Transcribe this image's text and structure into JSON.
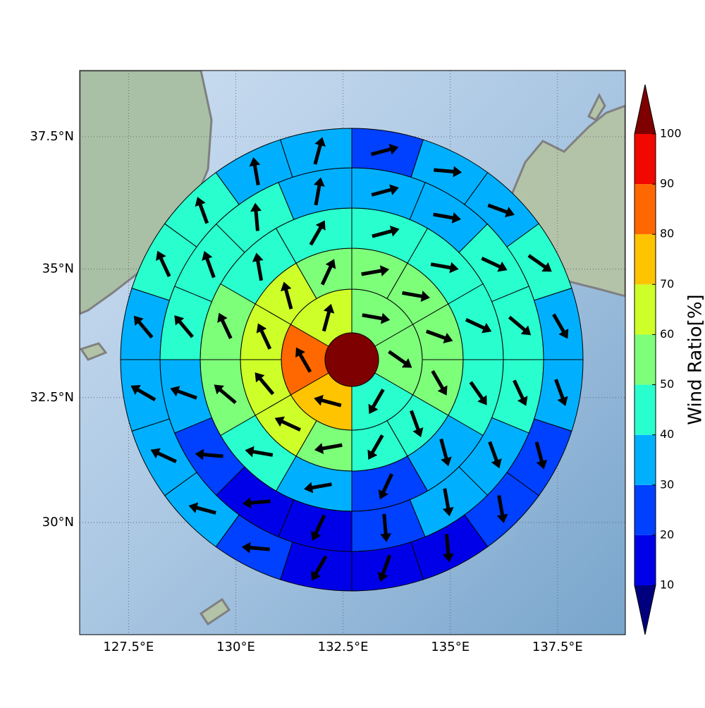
{
  "chart_data": {
    "type": "polar-grid-map",
    "xlim": [
      126.36,
      139.08
    ],
    "ylim": [
      27.7,
      38.72
    ],
    "xticks": [
      {
        "value": 127.5,
        "label": "127.5°E"
      },
      {
        "value": 130,
        "label": "130°E"
      },
      {
        "value": 132.5,
        "label": "132.5°E"
      },
      {
        "value": 135,
        "label": "135°E"
      },
      {
        "value": 137.5,
        "label": "137.5°E"
      }
    ],
    "yticks": [
      {
        "value": 30,
        "label": "30°N"
      },
      {
        "value": 32.5,
        "label": "32.5°N"
      },
      {
        "value": 35,
        "label": "35°N"
      },
      {
        "value": 37.5,
        "label": "37.5°N"
      }
    ],
    "grid": true,
    "center_value": 105,
    "rings": [
      {
        "values": [
          55,
          55,
          45,
          75,
          85,
          65
        ],
        "directions": [
          100,
          125,
          210,
          285,
          330,
          15
        ]
      },
      {
        "values": [
          55,
          55,
          55,
          55,
          45,
          45,
          55,
          65,
          65,
          65,
          65,
          55
        ],
        "directions": [
          80,
          100,
          110,
          150,
          160,
          210,
          260,
          295,
          320,
          335,
          345,
          25
        ]
      },
      {
        "values": [
          45,
          45,
          45,
          45,
          35,
          25,
          35,
          45,
          55,
          55,
          45,
          45
        ],
        "directions": [
          75,
          100,
          115,
          145,
          165,
          205,
          260,
          280,
          310,
          335,
          350,
          30
        ]
      },
      {
        "values": [
          35,
          35,
          45,
          45,
          45,
          35,
          35,
          25,
          15,
          15,
          25,
          35,
          45,
          45,
          45,
          35
        ],
        "directions": [
          75,
          100,
          115,
          130,
          155,
          160,
          170,
          175,
          205,
          265,
          275,
          290,
          320,
          340,
          355,
          10
        ]
      },
      {
        "values": [
          25,
          35,
          35,
          45,
          35,
          35,
          25,
          25,
          15,
          15,
          15,
          25,
          35,
          35,
          35,
          35,
          45,
          45,
          35,
          35
        ],
        "directions": [
          75,
          95,
          110,
          125,
          150,
          160,
          165,
          170,
          175,
          200,
          210,
          275,
          285,
          295,
          300,
          320,
          335,
          340,
          350,
          15
        ]
      }
    ],
    "colorbar": {
      "label": "Wind Ratio[%]",
      "ticks": [
        10,
        20,
        30,
        40,
        50,
        60,
        70,
        80,
        90,
        100
      ],
      "colors": [
        "#00007f",
        "#0000e8",
        "#0040ff",
        "#00b0ff",
        "#29ffce",
        "#7dff7a",
        "#ceff29",
        "#ffc400",
        "#ff6800",
        "#f10800",
        "#7f0000"
      ]
    }
  }
}
